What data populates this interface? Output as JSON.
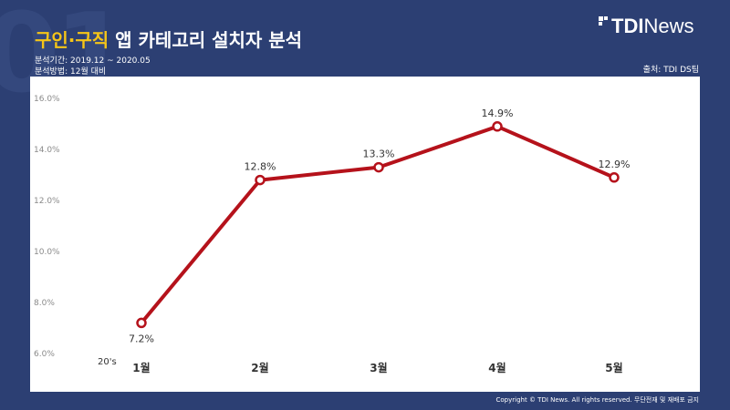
{
  "header": {
    "title_highlight": "구인·구직",
    "title_rest": " 앱 카테고리 설치자 분석",
    "period": "분석기간: 2019.12 ~ 2020.05",
    "method": "분석방법: 12월 대비",
    "background_number": "01"
  },
  "logo": {
    "bold": "TDI",
    "light": "News"
  },
  "source": "출처: TDI DS팀",
  "copyright": "Copyright © TDI News. All rights reserved. 무단전재 및 재배포 금지",
  "colors": {
    "background": "#2c3f73",
    "highlight": "#f5c518",
    "line": "#b5121b",
    "panel": "#ffffff"
  },
  "chart_data": {
    "type": "line",
    "title": "",
    "xlabel": "",
    "ylabel": "",
    "x_corner_label": "20's",
    "categories": [
      "1월",
      "2월",
      "3월",
      "4월",
      "5월"
    ],
    "series": [
      {
        "values": [
          7.2,
          12.8,
          13.3,
          14.9,
          12.9
        ],
        "labels": [
          "7.2%",
          "12.8%",
          "13.3%",
          "14.9%",
          "12.9%"
        ]
      }
    ],
    "yticks": [
      "6.0%",
      "8.0%",
      "10.0%",
      "12.0%",
      "14.0%",
      "16.0%"
    ],
    "ytick_values": [
      6,
      8,
      10,
      12,
      14,
      16
    ],
    "ylim": [
      6,
      16
    ],
    "grid": false,
    "legend": "none"
  }
}
